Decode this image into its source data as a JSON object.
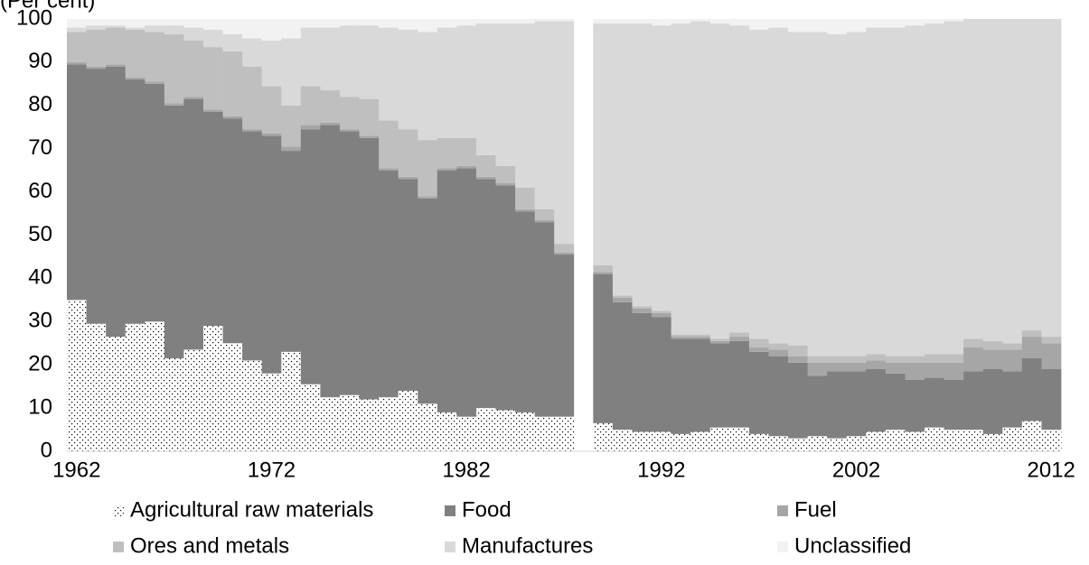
{
  "chart_data": {
    "type": "stacked-bar",
    "y_label": "(Per cent)",
    "categories": [
      "1962",
      null,
      null,
      null,
      null,
      null,
      null,
      null,
      null,
      null,
      "1972",
      null,
      null,
      null,
      null,
      null,
      null,
      null,
      null,
      null,
      "1982",
      null,
      null,
      null,
      null,
      null,
      null,
      null,
      null,
      null,
      "1992",
      null,
      null,
      null,
      null,
      null,
      null,
      null,
      null,
      null,
      "2002",
      null,
      null,
      null,
      null,
      null,
      null,
      null,
      null,
      null,
      "2012"
    ],
    "ylim": [
      0,
      100
    ],
    "yticks": [
      0,
      10,
      20,
      30,
      40,
      50,
      60,
      70,
      80,
      90,
      100
    ],
    "grid": false,
    "series": [
      {
        "name": "Agricultural raw materials",
        "color": "#ffffff",
        "fill": "dotted",
        "values": [
          35,
          29.5,
          26.5,
          29.5,
          30,
          21.5,
          23.5,
          29,
          25,
          21,
          18,
          23,
          15.5,
          12.5,
          13,
          12,
          12.5,
          14,
          11,
          9,
          8,
          10,
          9.5,
          9,
          8,
          8,
          null,
          6.5,
          5,
          4.5,
          4.5,
          4,
          4.5,
          5.5,
          5.5,
          4,
          3.5,
          3,
          3.5,
          3,
          3.5,
          4.5,
          5,
          4.5,
          5.5,
          5,
          5,
          4,
          5.5,
          7,
          5
        ]
      },
      {
        "name": "Food",
        "color": "#808080",
        "values": [
          54.5,
          59,
          62.5,
          56.5,
          55,
          58.5,
          58,
          49.5,
          52,
          53,
          55,
          46.5,
          59,
          63,
          61,
          60.5,
          52.5,
          49,
          47.5,
          56,
          57.5,
          53,
          52,
          46.5,
          45,
          37.5,
          null,
          34.5,
          29.5,
          27.5,
          26.5,
          22,
          21.5,
          19.5,
          20,
          19,
          18.5,
          17.5,
          14,
          15.5,
          15,
          14.5,
          13,
          12,
          11.5,
          11.5,
          13.5,
          15,
          13,
          14.5,
          14
        ]
      },
      {
        "name": "Fuel",
        "color": "#a6a6a6",
        "values": [
          0.5,
          0.5,
          0.5,
          0.5,
          0.5,
          0.5,
          0.5,
          0.5,
          0.5,
          0.5,
          0.5,
          1,
          1,
          0.5,
          0.5,
          0.5,
          0.5,
          0.5,
          0.5,
          0.5,
          0.5,
          0.5,
          0.5,
          0.5,
          0.5,
          0.5,
          null,
          0.5,
          1,
          1,
          1,
          0.5,
          0.5,
          0.5,
          1,
          1,
          1.5,
          1.5,
          3,
          2,
          2,
          2,
          2.5,
          4,
          3.5,
          4,
          5.5,
          4.5,
          5,
          5,
          6
        ]
      },
      {
        "name": "Ores and metals",
        "color": "#bfbfbf",
        "values": [
          7,
          8.5,
          8.5,
          11,
          11.5,
          16,
          13,
          14.5,
          15,
          14.5,
          11,
          9.5,
          9,
          7.5,
          7.5,
          8.5,
          11,
          11,
          13,
          7,
          6.5,
          5,
          4,
          5,
          2.5,
          2,
          null,
          1.5,
          0.5,
          0.5,
          0.5,
          0.5,
          0.5,
          0.5,
          1,
          2,
          1.5,
          2.5,
          1.5,
          1.5,
          1.5,
          1.5,
          1.5,
          1.5,
          2,
          2,
          2,
          2,
          1.5,
          1.5,
          1.5
        ]
      },
      {
        "name": "Manufactures",
        "color": "#d9d9d9",
        "values": [
          1,
          1,
          0.5,
          0.5,
          1.5,
          2,
          3,
          4,
          4,
          6.5,
          10.5,
          15.5,
          13.5,
          14.5,
          16.5,
          17,
          21.5,
          23,
          25,
          25.5,
          26,
          30.5,
          33,
          38,
          43.5,
          51.5,
          null,
          56,
          63,
          65.5,
          66,
          72,
          72.5,
          73,
          71,
          71.5,
          73,
          72.5,
          75,
          74.5,
          75,
          75.5,
          76,
          76.5,
          76.5,
          77,
          74,
          74.5,
          75,
          72,
          73.5
        ]
      },
      {
        "name": "Unclassified",
        "color": "#f2f2f2",
        "values": [
          2,
          1.5,
          1.5,
          2,
          1.5,
          1.5,
          2,
          2.5,
          3.5,
          4.5,
          5,
          4.5,
          2,
          2,
          1.5,
          1.5,
          2,
          2.5,
          3,
          2,
          1.5,
          1,
          1,
          1,
          0.5,
          0.5,
          null,
          1,
          1,
          1,
          1.5,
          1,
          0.5,
          1,
          1.5,
          2.5,
          2,
          3,
          3,
          3.5,
          3,
          2,
          2,
          1.5,
          1,
          0.5,
          0,
          0,
          0,
          0,
          0
        ]
      }
    ]
  }
}
